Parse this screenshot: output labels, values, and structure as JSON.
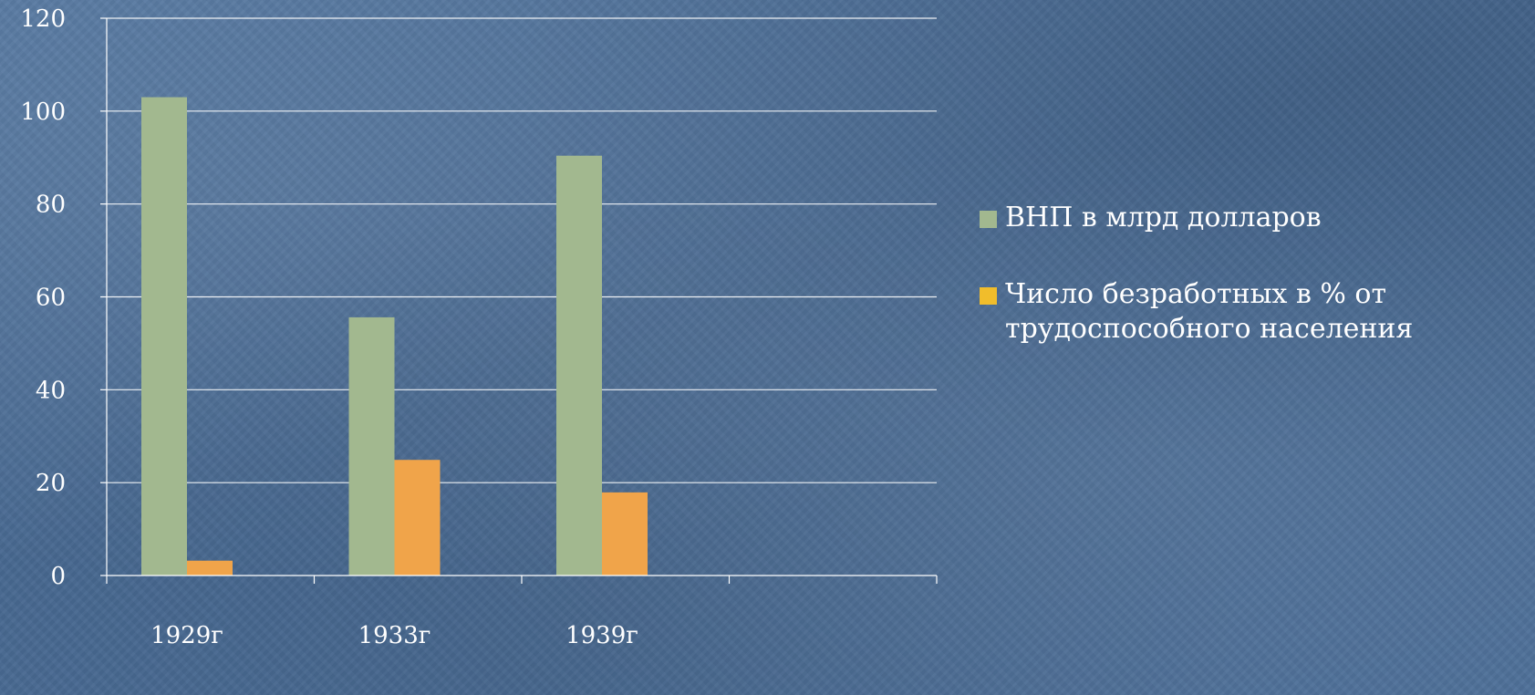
{
  "chart_data": {
    "type": "bar",
    "categories": [
      "1929г",
      "1933г",
      "1939г",
      ""
    ],
    "series": [
      {
        "name": "ВНП в млрд долларов",
        "values": [
          103,
          55.6,
          90.4,
          null
        ],
        "color": "#a2b88f",
        "legend_color": "#a2b88f"
      },
      {
        "name": "Число безработных  в % от трудоспособного населения",
        "values": [
          3.2,
          24.9,
          17.9,
          null
        ],
        "color": "#f0a44a",
        "legend_color": "#f1bd2b"
      }
    ],
    "ylim": [
      0,
      120
    ],
    "yticks": [
      "0",
      "20",
      "40",
      "60",
      "80",
      "100",
      "120"
    ],
    "grid": true,
    "legend": "right"
  }
}
